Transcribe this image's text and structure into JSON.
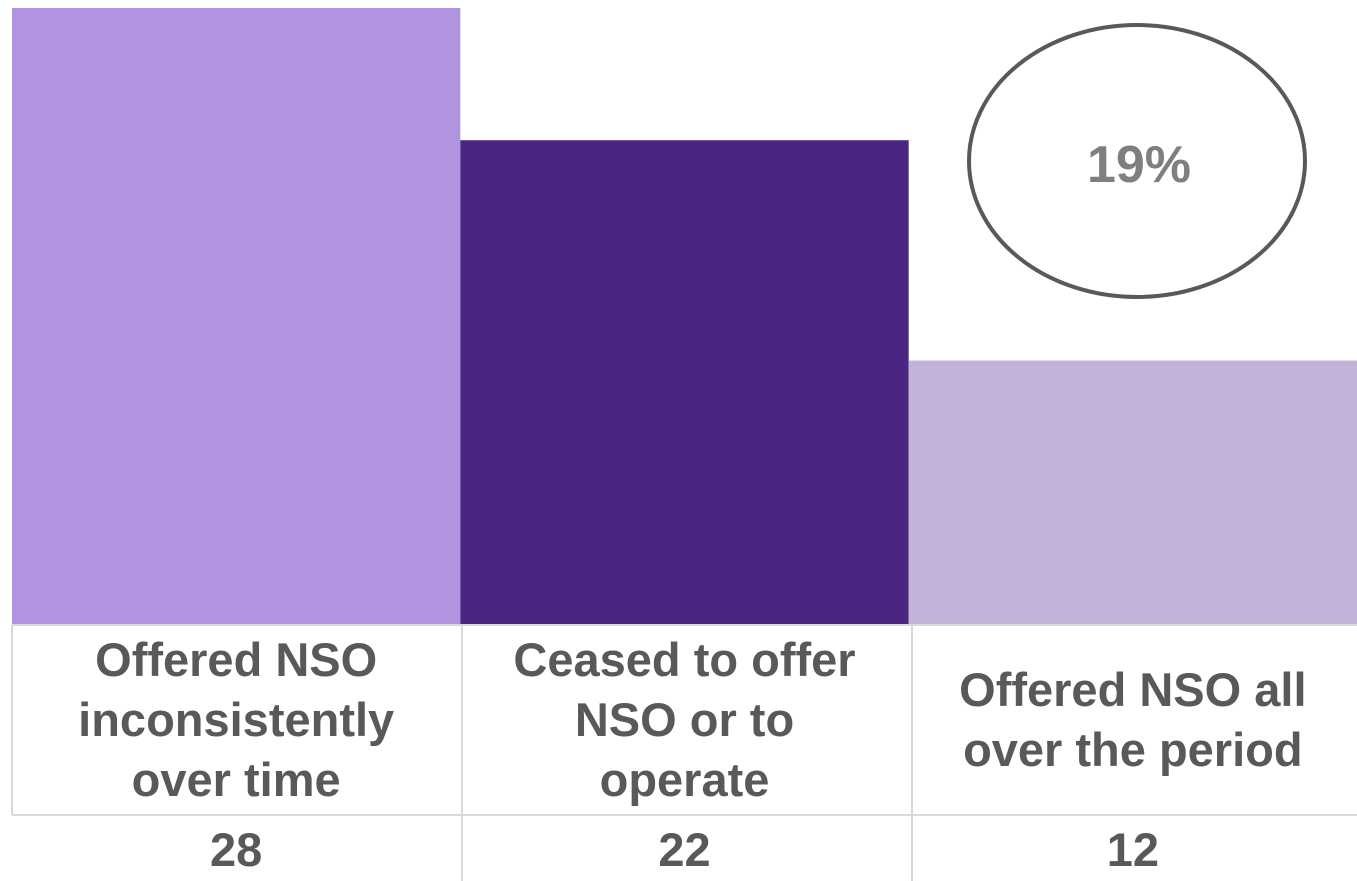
{
  "chart_data": {
    "type": "bar",
    "categories": [
      [
        "Offered NSO",
        "inconsistently",
        "over time"
      ],
      [
        "Ceased to offer",
        "NSO or to",
        "operate"
      ],
      [
        "Offered NSO all",
        "over the period"
      ]
    ],
    "values": [
      28,
      22,
      12
    ],
    "value_labels": [
      "28",
      "22",
      "12"
    ],
    "colors": [
      "#b094e0",
      "#4b2582",
      "#c3b3d8"
    ],
    "ylim": [
      0,
      28
    ],
    "grid": false,
    "legend": "none",
    "annotation": {
      "text": "19%",
      "attached_to": 2
    }
  }
}
